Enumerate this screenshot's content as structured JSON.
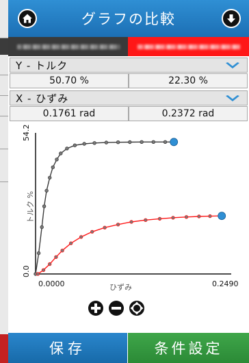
{
  "header": {
    "title": "グラフの比較",
    "home_icon": "home-icon",
    "down_icon": "arrow-down-icon"
  },
  "samples": [
    {
      "color": "#3a3a3a"
    },
    {
      "color": "#ff1717"
    }
  ],
  "y_axis_param": {
    "label": "Y - トルク",
    "values": [
      "50.70 %",
      "22.30 %"
    ]
  },
  "x_axis_param": {
    "label": "X - ひずみ",
    "values": [
      "0.1761 rad",
      "0.2372 rad"
    ]
  },
  "chart_data": {
    "type": "scatter",
    "xlabel": "ひずみ",
    "ylabel": "トルク %",
    "xlim": [
      0.0,
      0.249
    ],
    "ylim": [
      0.0,
      54.2
    ],
    "x_tick_labels": [
      "0.0000",
      "0.2490"
    ],
    "y_tick_labels": [
      "0.0",
      "54.2"
    ],
    "series": [
      {
        "color": "#3a3a3a",
        "x": [
          0.0,
          0.004,
          0.008,
          0.011,
          0.014,
          0.018,
          0.022,
          0.027,
          0.032,
          0.04,
          0.05,
          0.062,
          0.075,
          0.09,
          0.105,
          0.12,
          0.135,
          0.15,
          0.165,
          0.176
        ],
        "y": [
          0.0,
          8.0,
          18.0,
          26.0,
          32.0,
          37.0,
          41.0,
          44.0,
          46.3,
          48.2,
          49.4,
          50.0,
          50.3,
          50.5,
          50.6,
          50.65,
          50.7,
          50.7,
          50.7,
          50.7
        ]
      },
      {
        "color": "#ff1717",
        "x": [
          0.003,
          0.01,
          0.018,
          0.026,
          0.034,
          0.045,
          0.058,
          0.072,
          0.088,
          0.105,
          0.122,
          0.14,
          0.158,
          0.175,
          0.192,
          0.208,
          0.222,
          0.237
        ],
        "y": [
          0.0,
          1.5,
          3.8,
          6.5,
          9.0,
          11.8,
          14.2,
          16.2,
          17.8,
          19.0,
          20.0,
          20.7,
          21.2,
          21.6,
          21.9,
          22.1,
          22.2,
          22.3
        ]
      }
    ],
    "cursor_color": "#2f8fd4"
  },
  "zoom_controls": [
    "zoom-in-icon",
    "zoom-out-icon",
    "zoom-fit-icon"
  ],
  "footer": {
    "save_label": "保存",
    "conditions_label": "条件設定"
  }
}
